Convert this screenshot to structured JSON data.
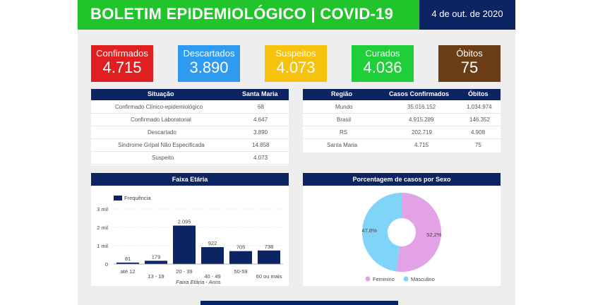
{
  "header": {
    "title": "BOLETIM EPIDEMIOLÓGICO | COVID-19",
    "date": "4 de out. de 2020"
  },
  "kpis": [
    {
      "label": "Confirmados",
      "value": "4.715",
      "color": "#e02020"
    },
    {
      "label": "Descartados",
      "value": "3.890",
      "color": "#2e9bf0"
    },
    {
      "label": "Suspeitos",
      "value": "4.073",
      "color": "#f6c20e"
    },
    {
      "label": "Curados",
      "value": "4.036",
      "color": "#1fcf3a"
    },
    {
      "label": "Óbitos",
      "value": "75",
      "color": "#6b3d17"
    }
  ],
  "situacao_table": {
    "headers": [
      "Situação",
      "Santa Maria"
    ],
    "rows": [
      [
        "Confirmado Clínico-epidemiológico",
        "68"
      ],
      [
        "Confirmado Laboratorial",
        "4.647"
      ],
      [
        "Descartado",
        "3.890"
      ],
      [
        "Síndrome Gripal Não Especificada",
        "14.858"
      ],
      [
        "Suspeito",
        "4.073"
      ]
    ]
  },
  "regiao_table": {
    "headers": [
      "Região",
      "Casos Confirmados",
      "Óbitos"
    ],
    "rows": [
      [
        "Mundo",
        "35.016.152",
        "1.034.974"
      ],
      [
        "Brasil",
        "4.915.289",
        "146.352"
      ],
      [
        "RS",
        "202.719",
        "4.908"
      ],
      [
        "Santa Maria",
        "4.715",
        "75"
      ]
    ]
  },
  "chart_data": [
    {
      "type": "bar",
      "title": "Faixa Etária",
      "legend": "Frequência",
      "categories": [
        "até 12",
        "13 - 19",
        "20 - 39",
        "40 - 49",
        "50-59",
        "60 ou mais"
      ],
      "values": [
        81,
        179,
        2095,
        922,
        705,
        738
      ],
      "value_labels": [
        "81",
        "179",
        "2.095",
        "922",
        "705",
        "738"
      ],
      "xlabel": "Faixa Etária - Anos",
      "yticks": [
        "0",
        "1 mil",
        "2 mil",
        "3 mil"
      ],
      "ylim": [
        0,
        3000
      ],
      "color": "#0d2462"
    },
    {
      "type": "pie",
      "title": "Porcentagem de casos por Sexo",
      "labels": [
        "Feminino",
        "Masculino"
      ],
      "values": [
        52.2,
        47.8
      ],
      "value_labels": [
        "52,2%",
        "47,8%"
      ],
      "colors": [
        "#e3a2e6",
        "#7fd4f7"
      ],
      "donut": true
    }
  ]
}
